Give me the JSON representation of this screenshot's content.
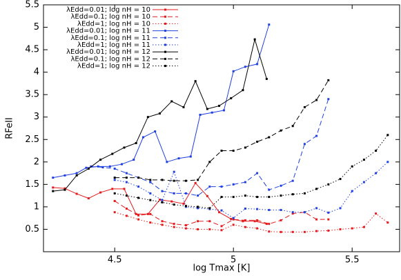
{
  "chart_data": {
    "type": "line",
    "xlabel": "log Tmax [K]",
    "ylabel": "RFeII",
    "xlim": [
      4.2,
      5.7
    ],
    "ylim": [
      0,
      5.5
    ],
    "xticks": [
      4.5,
      5,
      5.5
    ],
    "yticks": [
      0.5,
      1,
      1.5,
      2,
      2.5,
      3,
      3.5,
      4,
      4.5,
      5,
      5.5
    ],
    "legend": "upper left",
    "series": [
      {
        "name": "λEdd=0.01; log nH = 10",
        "color": "#e41a1c",
        "dash": "solid",
        "x": [
          4.24,
          4.29,
          4.34,
          4.39,
          4.44,
          4.49,
          4.54,
          4.59,
          4.64,
          4.69,
          4.74,
          4.79,
          4.84,
          4.89,
          4.94,
          4.99,
          5.04,
          5.09,
          5.14
        ],
        "values": [
          1.43,
          1.41,
          1.29,
          1.19,
          1.32,
          1.4,
          1.4,
          0.84,
          0.84,
          1.16,
          1.12,
          1.07,
          1.53,
          1.24,
          0.88,
          0.73,
          0.68,
          0.68,
          0.62
        ]
      },
      {
        "name": "λEdd=0.1; log nH = 10",
        "color": "#e41a1c",
        "dash": "dashed",
        "x": [
          4.5,
          4.55,
          4.6,
          4.65,
          4.7,
          4.75,
          4.8,
          4.85,
          4.9,
          4.95,
          5.0,
          5.05,
          5.1,
          5.15,
          5.2,
          5.25,
          5.3,
          5.35,
          5.4
        ],
        "values": [
          1.13,
          0.96,
          0.81,
          0.84,
          0.68,
          0.62,
          0.59,
          0.68,
          0.68,
          0.57,
          0.72,
          0.7,
          0.7,
          0.62,
          0.7,
          0.85,
          0.88,
          0.72,
          0.72
        ]
      },
      {
        "name": "λEdd=1; log nH = 10",
        "color": "#e41a1c",
        "dash": "dotted",
        "x": [
          4.5,
          4.55,
          4.6,
          4.65,
          4.7,
          4.75,
          4.8,
          4.85,
          4.9,
          4.95,
          5.0,
          5.05,
          5.1,
          5.15,
          5.2,
          5.25,
          5.3,
          5.35,
          5.4,
          5.45,
          5.5,
          5.55,
          5.6,
          5.65
        ],
        "values": [
          0.88,
          0.8,
          0.72,
          0.65,
          0.6,
          0.55,
          0.52,
          0.5,
          0.5,
          0.48,
          0.6,
          0.55,
          0.52,
          0.45,
          0.44,
          0.44,
          0.44,
          0.46,
          0.47,
          0.5,
          0.52,
          0.55,
          0.85,
          0.65
        ]
      },
      {
        "name": "λEdd=0.01; log nH = 11",
        "color": "#1f3fe0",
        "dash": "solid",
        "x": [
          4.24,
          4.29,
          4.34,
          4.38,
          4.43,
          4.48,
          4.53,
          4.58,
          4.62,
          4.67,
          4.72,
          4.77,
          4.82,
          4.86,
          4.91,
          4.96,
          5.0,
          5.05,
          5.1,
          5.15
        ],
        "values": [
          1.65,
          1.7,
          1.75,
          1.87,
          1.9,
          1.9,
          1.95,
          2.05,
          2.55,
          2.68,
          2.0,
          2.08,
          2.12,
          3.05,
          3.1,
          3.15,
          4.02,
          4.12,
          4.18,
          5.06
        ]
      },
      {
        "name": "λEdd=0.1; log nH = 11",
        "color": "#1f3fe0",
        "dash": "dashed",
        "x": [
          4.4,
          4.45,
          4.5,
          4.55,
          4.6,
          4.65,
          4.7,
          4.75,
          4.8,
          4.85,
          4.9,
          4.95,
          5.0,
          5.05,
          5.1,
          5.15,
          5.2,
          5.25,
          5.3,
          5.35,
          5.4
        ],
        "values": [
          1.9,
          1.88,
          1.85,
          1.75,
          1.65,
          1.55,
          1.35,
          1.3,
          1.3,
          1.25,
          1.45,
          1.45,
          1.5,
          1.55,
          1.75,
          1.38,
          1.47,
          1.58,
          2.4,
          2.58,
          3.4
        ]
      },
      {
        "name": "λEdd=1; log nH = 11",
        "color": "#1f3fe0",
        "dash": "dotted",
        "x": [
          4.5,
          4.55,
          4.6,
          4.65,
          4.7,
          4.75,
          4.8,
          4.85,
          4.9,
          4.95,
          5.0,
          5.05,
          5.1,
          5.15,
          5.2,
          5.25,
          5.3,
          5.35,
          5.4,
          5.45,
          5.5,
          5.55,
          5.6,
          5.65
        ],
        "values": [
          1.6,
          1.55,
          1.45,
          1.3,
          1.15,
          1.78,
          1.0,
          0.97,
          0.95,
          0.92,
          0.75,
          0.96,
          0.95,
          0.93,
          0.93,
          0.88,
          0.88,
          0.97,
          0.87,
          0.97,
          1.35,
          1.55,
          1.75,
          2.0
        ]
      },
      {
        "name": "λEdd=0.01; log nH = 12",
        "color": "#000000",
        "dash": "solid",
        "x": [
          4.24,
          4.29,
          4.34,
          4.39,
          4.44,
          4.49,
          4.54,
          4.59,
          4.64,
          4.69,
          4.74,
          4.79,
          4.84,
          4.89,
          4.94,
          4.99,
          5.04,
          5.09,
          5.14
        ],
        "values": [
          1.35,
          1.38,
          1.7,
          1.85,
          2.05,
          2.18,
          2.32,
          2.42,
          3.0,
          3.08,
          3.35,
          3.22,
          3.8,
          3.18,
          3.25,
          3.42,
          3.6,
          4.73,
          3.85
        ]
      },
      {
        "name": "λEdd=0.1; log nH = 12",
        "color": "#000000",
        "dash": "dashed",
        "x": [
          4.5,
          4.55,
          4.6,
          4.65,
          4.7,
          4.75,
          4.8,
          4.85,
          4.9,
          4.95,
          5.0,
          5.05,
          5.1,
          5.15,
          5.2,
          5.25,
          5.3,
          5.35,
          5.4
        ],
        "values": [
          1.65,
          1.65,
          1.65,
          1.6,
          1.6,
          1.58,
          1.58,
          1.6,
          2.0,
          2.25,
          2.25,
          2.32,
          2.45,
          2.55,
          2.7,
          2.8,
          3.22,
          3.38,
          3.82
        ]
      },
      {
        "name": "λEdd=1; log nH = 12",
        "color": "#000000",
        "dash": "dotted",
        "x": [
          4.5,
          4.55,
          4.6,
          4.65,
          4.7,
          4.75,
          4.8,
          4.85,
          4.9,
          4.95,
          5.0,
          5.05,
          5.1,
          5.15,
          5.2,
          5.25,
          5.3,
          5.35,
          5.4,
          5.45,
          5.5,
          5.55,
          5.6,
          5.65
        ],
        "values": [
          1.3,
          1.25,
          1.2,
          1.15,
          1.1,
          1.05,
          1.02,
          1.0,
          0.97,
          1.22,
          1.22,
          1.25,
          1.22,
          1.22,
          1.25,
          1.28,
          1.3,
          1.4,
          1.5,
          1.62,
          1.9,
          2.05,
          2.25,
          2.6
        ]
      }
    ]
  }
}
